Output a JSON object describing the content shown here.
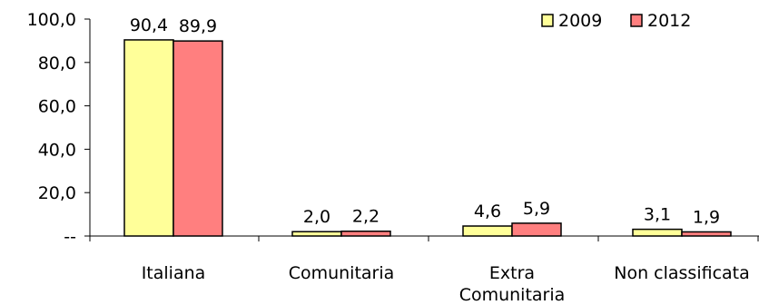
{
  "chart_data": {
    "type": "bar",
    "categories": [
      "Italiana",
      "Comunitaria",
      "Extra\nComunitaria",
      "Non classificata"
    ],
    "series": [
      {
        "name": "2009",
        "values": [
          90.4,
          2.0,
          4.6,
          3.1
        ],
        "color": "#FFFF99"
      },
      {
        "name": "2012",
        "values": [
          89.9,
          2.2,
          5.9,
          1.9
        ],
        "color": "#FF7F7F"
      }
    ],
    "data_labels": [
      [
        "90,4",
        "2,0",
        "4,6",
        "3,1"
      ],
      [
        "89,9",
        "2,2",
        "5,9",
        "1,9"
      ]
    ],
    "ylim": [
      0,
      100
    ],
    "yticks": [
      0,
      20,
      40,
      60,
      80,
      100
    ],
    "ytick_labels": [
      "--",
      "20,0",
      "40,0",
      "60,0",
      "80,0",
      "100,0"
    ],
    "grid": false,
    "legend_position": "top-right",
    "bar_stroke": "#000000",
    "title": "",
    "xlabel": "",
    "ylabel": ""
  }
}
